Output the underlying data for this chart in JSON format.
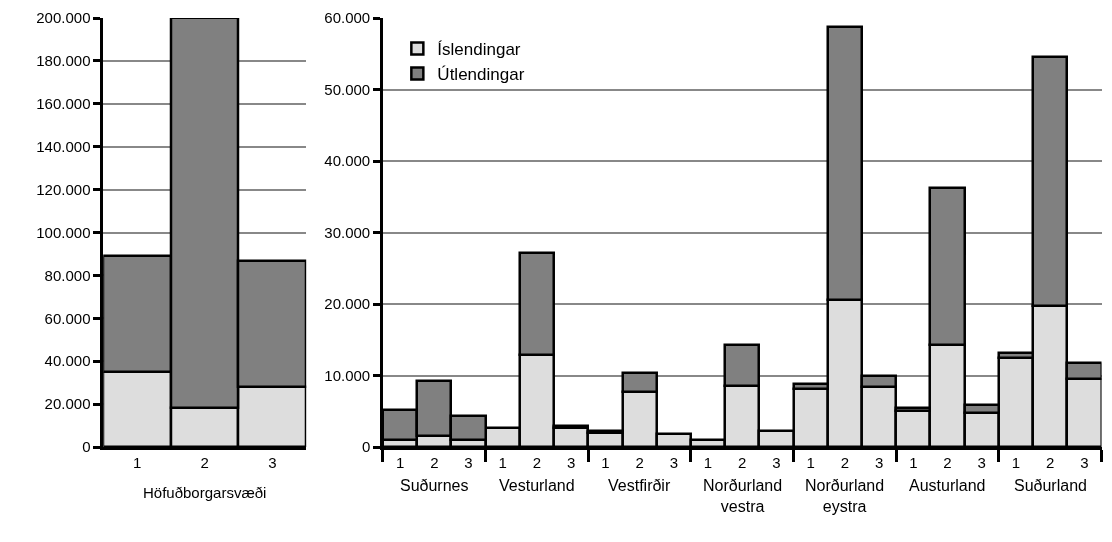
{
  "chart_data": [
    {
      "type": "bar",
      "stacked": true,
      "xlabel": "Höfuðborgarsvæði",
      "categories": [
        "1",
        "2",
        "3"
      ],
      "series": [
        {
          "color": "#dddddd",
          "values": [
            35000,
            18000,
            28000
          ]
        },
        {
          "color": "#808080",
          "values": [
            54000,
            182000,
            58500
          ]
        }
      ],
      "ylim": [
        0,
        200000
      ],
      "yticks": [
        0,
        {
          "value": 20000,
          "label": "20.000"
        },
        {
          "value": 40000,
          "label": "40.000"
        },
        {
          "value": 60000,
          "label": "60.000"
        },
        {
          "value": 80000,
          "label": "80.000"
        },
        {
          "value": 100000,
          "label": "100.000"
        },
        {
          "value": 120000,
          "label": "120.000"
        },
        {
          "value": 140000,
          "label": "140.000"
        },
        {
          "value": 160000,
          "label": "160.000"
        },
        {
          "value": 180000,
          "label": "180.000"
        },
        {
          "value": 200000,
          "label": "200.000"
        }
      ],
      "grid": "y",
      "legend": false
    },
    {
      "type": "bar",
      "stacked": true,
      "categories": [
        "1",
        "2",
        "3",
        "1",
        "2",
        "3",
        "1",
        "2",
        "3",
        "1",
        "2",
        "3",
        "1",
        "2",
        "3",
        "1",
        "2",
        "3",
        "1",
        "2",
        "3"
      ],
      "annotations": [
        "Suðurnes",
        "Vesturland",
        "Vestfirðir",
        "Norðurland\nvestra",
        "Norðurland\neystra",
        "Austurland",
        "Suðurland"
      ],
      "series": [
        {
          "name": "Íslendingar",
          "color": "#dddddd",
          "values": [
            1000,
            1500,
            1000,
            2600,
            12900,
            2600,
            1900,
            7700,
            1800,
            1000,
            8500,
            2200,
            8100,
            20500,
            8400,
            5100,
            14200,
            4700,
            12400,
            19700,
            9500
          ]
        },
        {
          "name": "Útlendingar",
          "color": "#808080",
          "values": [
            4200,
            7700,
            3400,
            null,
            14300,
            400,
            300,
            2700,
            null,
            null,
            5800,
            null,
            700,
            38200,
            1500,
            400,
            22000,
            1200,
            700,
            34900,
            2300
          ]
        }
      ],
      "ylim": [
        0,
        60000
      ],
      "yticks": [
        0,
        {
          "value": 10000,
          "label": "10.000"
        },
        {
          "value": 20000,
          "label": "20.000"
        },
        {
          "value": 30000,
          "label": "30.000"
        },
        {
          "value": 40000,
          "label": "40.000"
        },
        {
          "value": 50000,
          "label": "50.000"
        },
        {
          "value": 60000,
          "label": "60.000"
        }
      ],
      "grid": "y",
      "legend": "top left"
    }
  ]
}
